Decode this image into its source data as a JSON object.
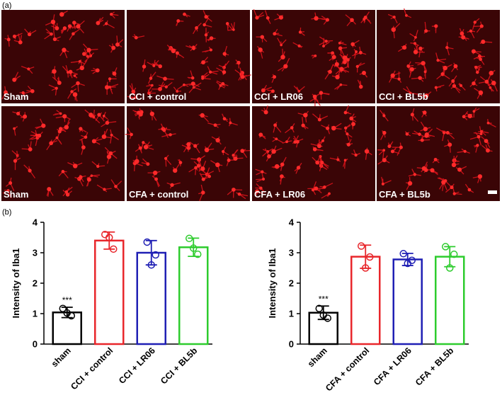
{
  "figure": {
    "panel_labels": [
      "(a)",
      "(b)"
    ],
    "image_labels": [
      [
        "Sham",
        "CCI + control",
        "CCI + LR06",
        "CCI + BL5b"
      ],
      [
        "Sham",
        "CFA + control",
        "CFA + LR06",
        "CFA + BL5b"
      ]
    ]
  },
  "chart_data": [
    {
      "type": "bar",
      "ylabel": "Intensity of Iba1",
      "categories": [
        "sham",
        "CCI + control",
        "CCI + LR06",
        "CCI + BL5b"
      ],
      "colors": [
        "#000000",
        "#e8262b",
        "#1f1fb4",
        "#2ecc2e"
      ],
      "values": [
        1.04,
        3.4,
        3.0,
        3.18
      ],
      "errors": [
        0.17,
        0.28,
        0.4,
        0.3
      ],
      "points": [
        [
          1.17,
          0.93,
          1.02
        ],
        [
          3.6,
          3.12,
          3.5
        ],
        [
          3.35,
          2.93,
          2.6
        ],
        [
          3.47,
          2.95,
          3.15
        ]
      ],
      "annotations": [
        {
          "text": "***",
          "category": "sham"
        }
      ],
      "ylim": [
        0,
        4
      ],
      "yticks": [
        0,
        1,
        2,
        3,
        4
      ]
    },
    {
      "type": "bar",
      "ylabel": "Intensity of Iba1",
      "categories": [
        "sham",
        "CFA + control",
        "CFA + LR06",
        "CFA + BL5b"
      ],
      "colors": [
        "#000000",
        "#e8262b",
        "#1f1fb4",
        "#2ecc2e"
      ],
      "values": [
        1.03,
        2.87,
        2.78,
        2.87
      ],
      "errors": [
        0.22,
        0.38,
        0.2,
        0.33
      ],
      "points": [
        [
          1.17,
          0.85,
          0.95
        ],
        [
          3.22,
          2.86,
          2.5
        ],
        [
          2.97,
          2.75,
          2.65
        ],
        [
          3.2,
          2.95,
          2.5
        ]
      ],
      "annotations": [
        {
          "text": "***",
          "category": "sham"
        }
      ],
      "ylim": [
        0,
        4
      ],
      "yticks": [
        0,
        1,
        2,
        3,
        4
      ]
    }
  ]
}
